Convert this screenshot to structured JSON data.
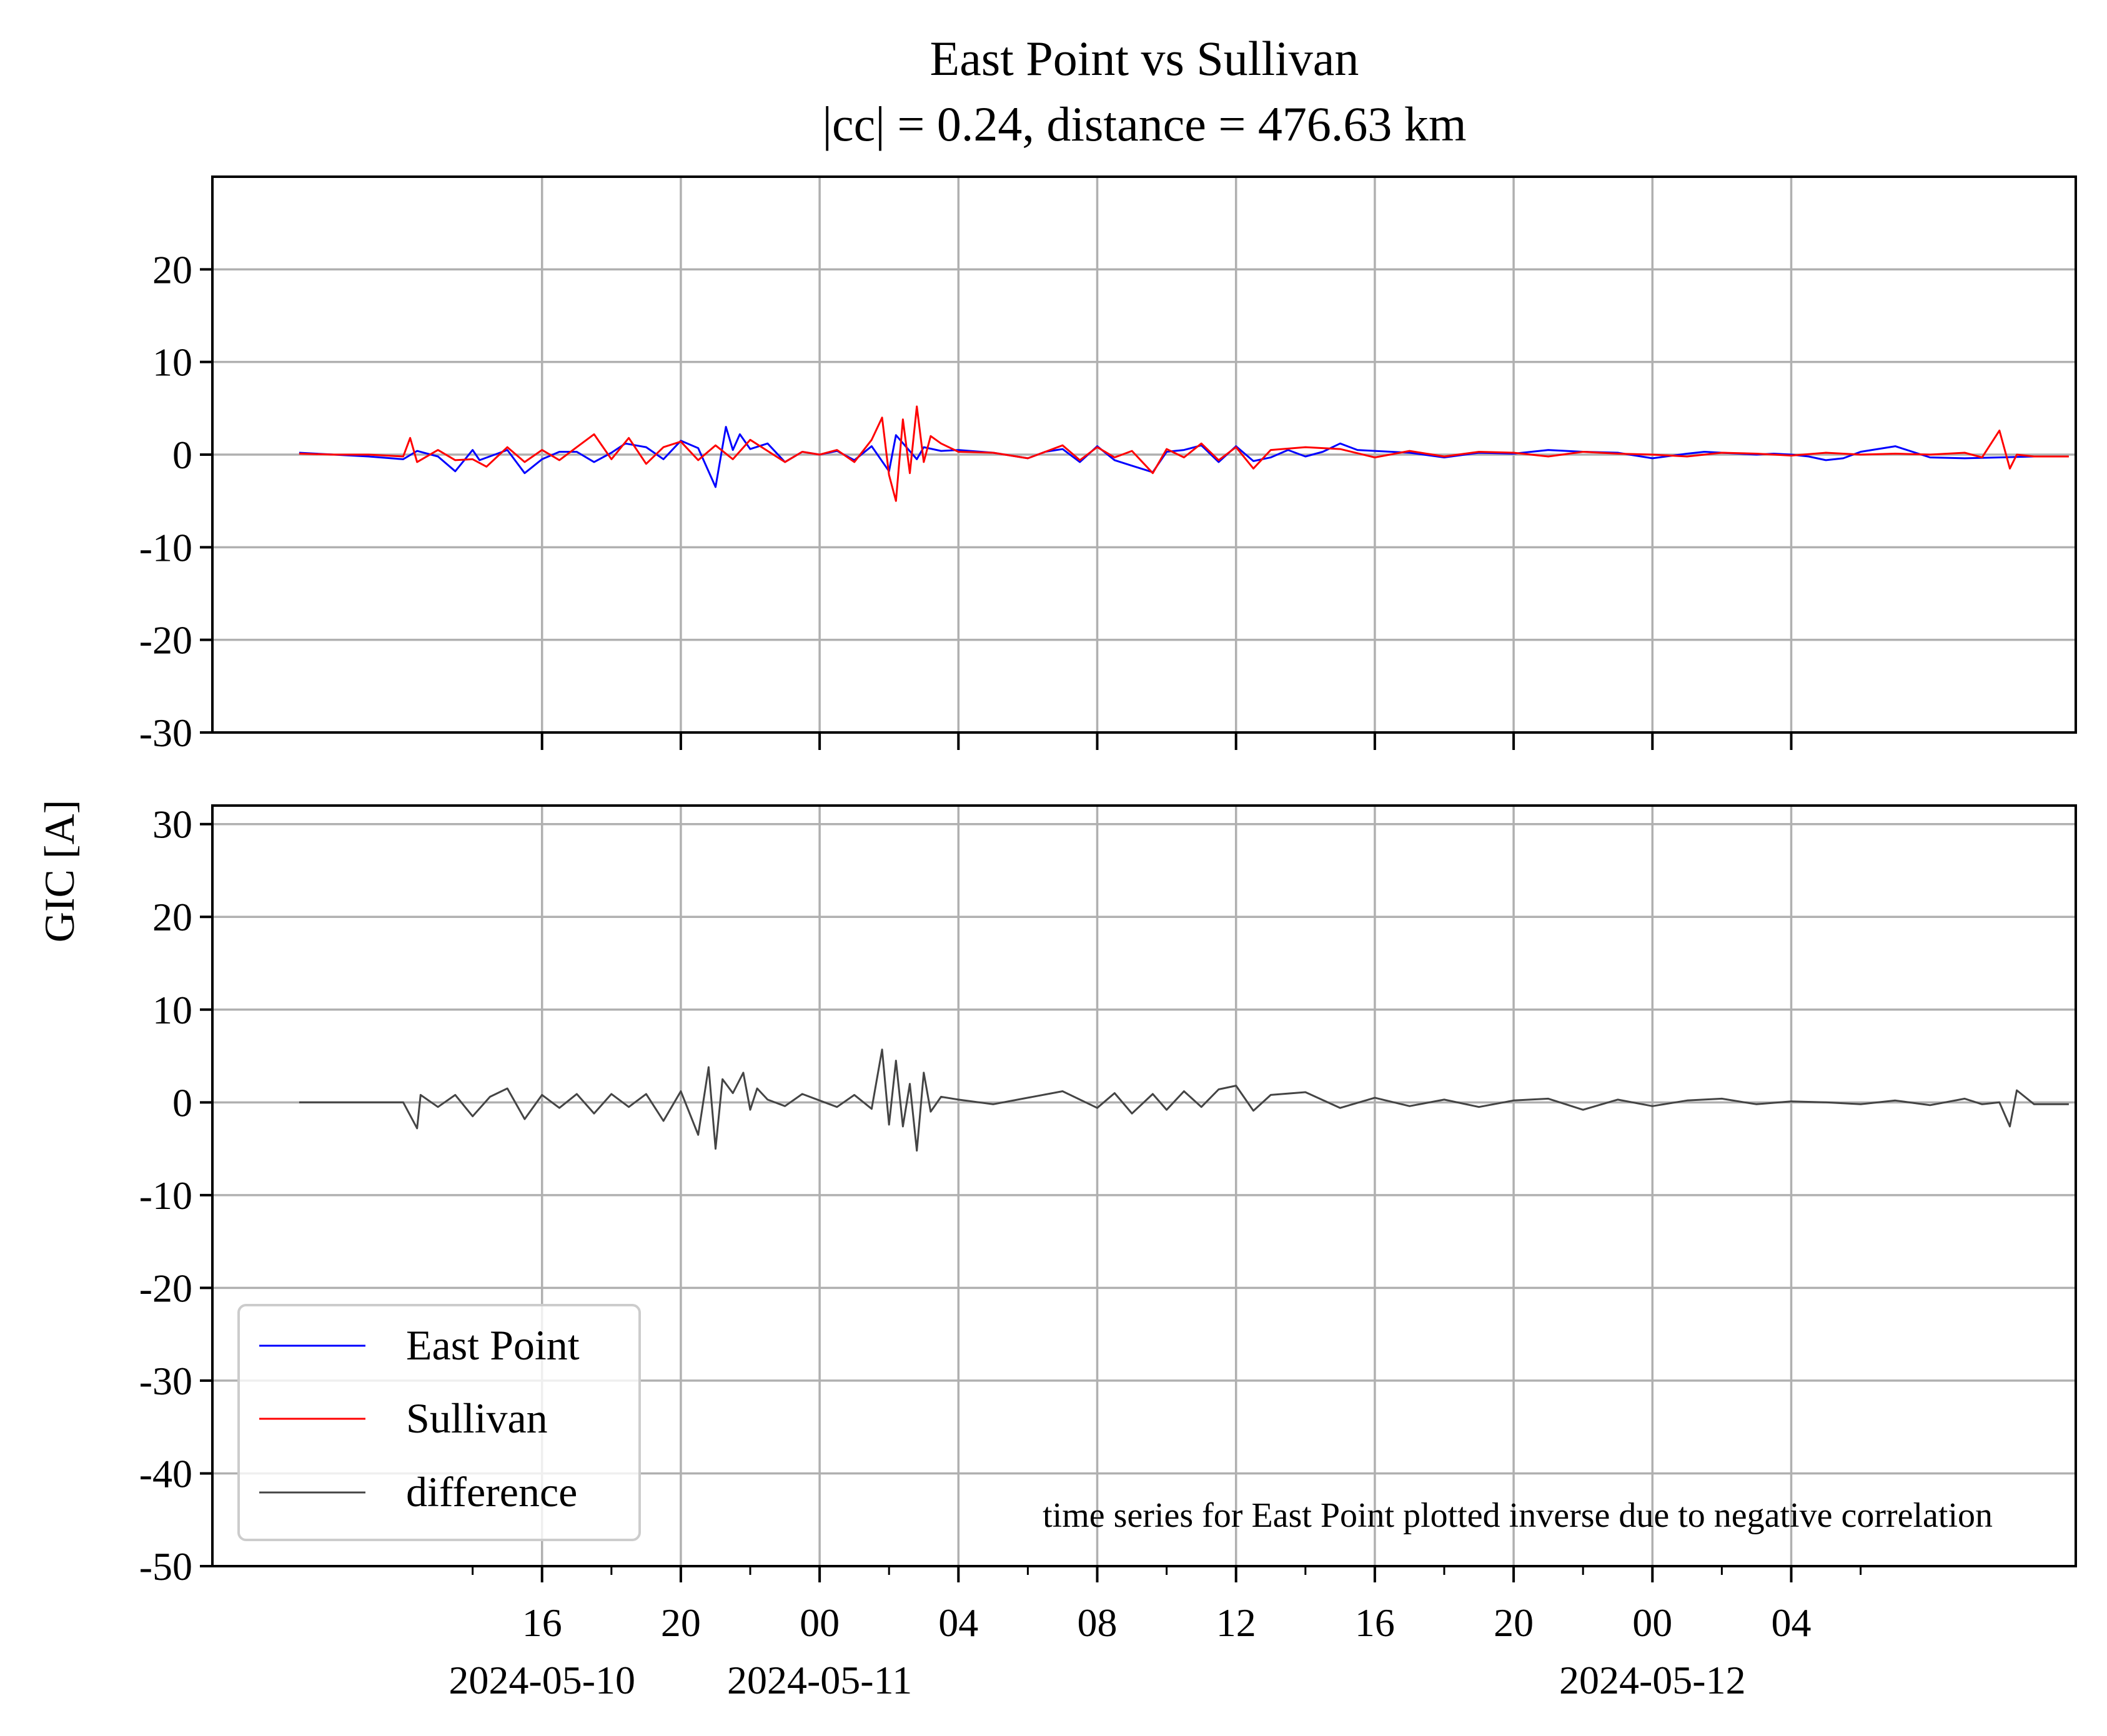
{
  "chart_data": [
    {
      "type": "line",
      "panel": "top",
      "title": "East Point vs Sullivan",
      "subtitle": "|cc| = 0.24, distance = 476.63 km",
      "ylabel": "GIC [A]",
      "ylim": [
        -30,
        30
      ],
      "yticks": [
        20,
        10,
        0,
        -10,
        -20,
        -30
      ],
      "ytick_labels": [
        "20",
        "10",
        "0",
        "-10",
        "-20",
        "-30"
      ],
      "x_range_hours": [
        -17.5,
        36.2
      ],
      "x_unit": "hours relative to 2024-05-11 00:00",
      "grid": true,
      "series": [
        {
          "name": "East Point",
          "color": "#0000ff",
          "x_hours": [
            -15.0,
            -14.0,
            -13.0,
            -12.0,
            -11.6,
            -11.0,
            -10.5,
            -10.0,
            -9.8,
            -9.0,
            -8.5,
            -8.0,
            -7.5,
            -7.0,
            -6.5,
            -6.0,
            -5.6,
            -5.0,
            -4.5,
            -4.0,
            -3.5,
            -3.0,
            -2.7,
            -2.5,
            -2.3,
            -2.0,
            -1.5,
            -1.0,
            -0.5,
            0.0,
            0.5,
            1.0,
            1.5,
            2.0,
            2.2,
            2.5,
            2.8,
            3.0,
            3.5,
            4.0,
            5.0,
            6.0,
            6.5,
            7.0,
            7.5,
            8.0,
            8.5,
            9.0,
            9.6,
            10.0,
            10.5,
            11.0,
            11.5,
            12.0,
            12.5,
            13.0,
            13.5,
            14.0,
            14.5,
            15.0,
            15.5,
            16.0,
            17.0,
            18.0,
            19.0,
            20.0,
            21.0,
            22.0,
            23.0,
            24.0,
            25.0,
            25.5,
            26.0,
            26.5,
            27.0,
            27.5,
            28.0,
            28.5,
            29.0,
            29.5,
            30.0,
            31.0,
            32.0,
            33.0,
            34.0,
            35.0
          ],
          "values": [
            0.2,
            0.0,
            -0.2,
            -0.5,
            0.4,
            -0.2,
            -1.8,
            0.5,
            -0.6,
            0.5,
            -2.0,
            -0.5,
            0.3,
            0.3,
            -0.8,
            0.2,
            1.2,
            0.8,
            -0.5,
            1.5,
            0.7,
            -3.5,
            3.0,
            0.5,
            2.2,
            0.6,
            1.2,
            -0.8,
            0.3,
            0.0,
            0.4,
            -0.6,
            0.9,
            -1.8,
            2.1,
            0.8,
            -0.5,
            0.8,
            0.4,
            0.5,
            0.2,
            -0.4,
            0.3,
            0.6,
            -0.8,
            0.9,
            -0.6,
            -1.2,
            -1.9,
            0.3,
            0.5,
            1.0,
            -0.8,
            0.9,
            -0.7,
            -0.3,
            0.5,
            -0.2,
            0.3,
            1.2,
            0.5,
            0.4,
            0.2,
            -0.3,
            0.2,
            0.1,
            0.5,
            0.3,
            0.2,
            -0.4,
            0.1,
            0.3,
            0.2,
            0.1,
            0.0,
            0.1,
            0.0,
            -0.2,
            -0.6,
            -0.4,
            0.3,
            0.9,
            -0.3,
            -0.4,
            -0.3,
            -0.2
          ]
        },
        {
          "name": "Sullivan",
          "color": "#ff0000",
          "x_hours": [
            -15.0,
            -14.0,
            -13.0,
            -12.0,
            -11.8,
            -11.6,
            -11.0,
            -10.5,
            -10.0,
            -9.6,
            -9.0,
            -8.5,
            -8.0,
            -7.5,
            -7.0,
            -6.5,
            -6.0,
            -5.5,
            -5.0,
            -4.5,
            -4.0,
            -3.5,
            -3.0,
            -2.5,
            -2.0,
            -1.5,
            -1.0,
            -0.5,
            0.0,
            0.5,
            1.0,
            1.5,
            1.8,
            2.0,
            2.2,
            2.4,
            2.6,
            2.8,
            3.0,
            3.2,
            3.5,
            4.0,
            5.0,
            6.0,
            7.0,
            7.5,
            8.0,
            8.5,
            9.0,
            9.6,
            10.0,
            10.5,
            11.0,
            11.5,
            12.0,
            12.5,
            13.0,
            14.0,
            15.0,
            16.0,
            17.0,
            18.0,
            19.0,
            20.0,
            21.0,
            22.0,
            23.0,
            24.0,
            25.0,
            26.0,
            27.0,
            28.0,
            29.0,
            30.0,
            31.0,
            32.0,
            33.0,
            33.5,
            34.0,
            34.3,
            34.5,
            35.0,
            36.0
          ],
          "values": [
            0.1,
            0.0,
            0.0,
            -0.2,
            1.8,
            -0.8,
            0.5,
            -0.6,
            -0.5,
            -1.3,
            0.8,
            -0.8,
            0.5,
            -0.6,
            0.8,
            2.2,
            -0.5,
            1.8,
            -1.0,
            0.8,
            1.4,
            -0.6,
            1.0,
            -0.5,
            1.6,
            0.4,
            -0.8,
            0.3,
            0.0,
            0.5,
            -0.8,
            1.6,
            4.0,
            -2.2,
            -5.0,
            3.8,
            -2.0,
            5.2,
            -0.8,
            2.0,
            1.2,
            0.3,
            0.2,
            -0.4,
            1.0,
            -0.6,
            0.8,
            -0.3,
            0.4,
            -2.0,
            0.6,
            -0.3,
            1.2,
            -0.6,
            0.8,
            -1.5,
            0.5,
            0.8,
            0.6,
            -0.3,
            0.4,
            -0.2,
            0.3,
            0.2,
            -0.2,
            0.3,
            0.1,
            0.0,
            -0.2,
            0.2,
            0.1,
            -0.1,
            0.2,
            0.0,
            0.1,
            0.0,
            0.2,
            -0.3,
            2.6,
            -1.5,
            0.0,
            -0.2,
            -0.2
          ]
        }
      ]
    },
    {
      "type": "line",
      "panel": "bottom",
      "ylim": [
        -50,
        32
      ],
      "yticks": [
        30,
        20,
        10,
        0,
        -10,
        -20,
        -30,
        -40,
        -50
      ],
      "ytick_labels": [
        "30",
        "20",
        "10",
        "0",
        "-10",
        "-20",
        "-30",
        "-40",
        "-50"
      ],
      "x_range_hours": [
        -17.5,
        36.2
      ],
      "grid": true,
      "series": [
        {
          "name": "difference",
          "color": "#444444",
          "x_hours": [
            -15.0,
            -13.0,
            -12.0,
            -11.6,
            -11.5,
            -11.0,
            -10.5,
            -10.0,
            -9.5,
            -9.0,
            -8.5,
            -8.0,
            -7.5,
            -7.0,
            -6.5,
            -6.0,
            -5.5,
            -5.0,
            -4.5,
            -4.0,
            -3.5,
            -3.2,
            -3.0,
            -2.8,
            -2.5,
            -2.2,
            -2.0,
            -1.8,
            -1.5,
            -1.0,
            -0.5,
            0.0,
            0.5,
            1.0,
            1.5,
            1.8,
            2.0,
            2.2,
            2.4,
            2.6,
            2.8,
            3.0,
            3.2,
            3.5,
            4.0,
            5.0,
            6.0,
            7.0,
            8.0,
            8.5,
            9.0,
            9.6,
            10.0,
            10.5,
            11.0,
            11.5,
            12.0,
            12.5,
            13.0,
            14.0,
            15.0,
            16.0,
            17.0,
            18.0,
            19.0,
            20.0,
            21.0,
            22.0,
            23.0,
            24.0,
            25.0,
            26.0,
            27.0,
            28.0,
            29.0,
            30.0,
            31.0,
            32.0,
            33.0,
            33.5,
            34.0,
            34.3,
            34.5,
            35.0,
            36.0
          ],
          "values": [
            0.0,
            0.0,
            0.0,
            -2.8,
            0.8,
            -0.5,
            0.8,
            -1.5,
            0.6,
            1.5,
            -1.8,
            0.8,
            -0.6,
            0.9,
            -1.2,
            0.9,
            -0.5,
            0.9,
            -2.0,
            1.2,
            -3.5,
            3.8,
            -5.0,
            2.5,
            1.0,
            3.2,
            -0.8,
            1.5,
            0.3,
            -0.4,
            0.9,
            0.2,
            -0.5,
            0.8,
            -0.7,
            5.7,
            -2.4,
            4.5,
            -2.6,
            2.0,
            -5.2,
            3.2,
            -1.0,
            0.6,
            0.3,
            -0.2,
            0.5,
            1.2,
            -0.6,
            1.0,
            -1.2,
            0.9,
            -0.8,
            1.2,
            -0.5,
            1.4,
            1.8,
            -0.9,
            0.8,
            1.1,
            -0.6,
            0.5,
            -0.4,
            0.3,
            -0.5,
            0.2,
            0.4,
            -0.8,
            0.3,
            -0.4,
            0.2,
            0.4,
            -0.2,
            0.1,
            0.0,
            -0.2,
            0.2,
            -0.3,
            0.4,
            -0.2,
            0.0,
            -2.6,
            1.3,
            -0.2,
            -0.2
          ]
        }
      ]
    }
  ],
  "x_axis": {
    "ticks_hours": [
      -8,
      -4,
      0,
      4,
      8,
      12,
      16,
      20,
      24,
      28
    ],
    "tick_labels": [
      "16",
      "20",
      "00",
      "04",
      "08",
      "12",
      "16",
      "20",
      "00",
      "04"
    ],
    "date_labels": [
      {
        "hours": -8,
        "label": "2024-05-10"
      },
      {
        "hours": 0,
        "label": "2024-05-11"
      },
      {
        "hours": 24,
        "label": "2024-05-12"
      }
    ],
    "minor_step_hours": 2
  },
  "legend": {
    "placement": "lower-left",
    "entries": [
      {
        "label": "East Point",
        "color": "#0000ff"
      },
      {
        "label": "Sullivan",
        "color": "#ff0000"
      },
      {
        "label": "difference",
        "color": "#444444"
      }
    ]
  },
  "annotation": "time series for East Point plotted inverse due to negative correlation"
}
